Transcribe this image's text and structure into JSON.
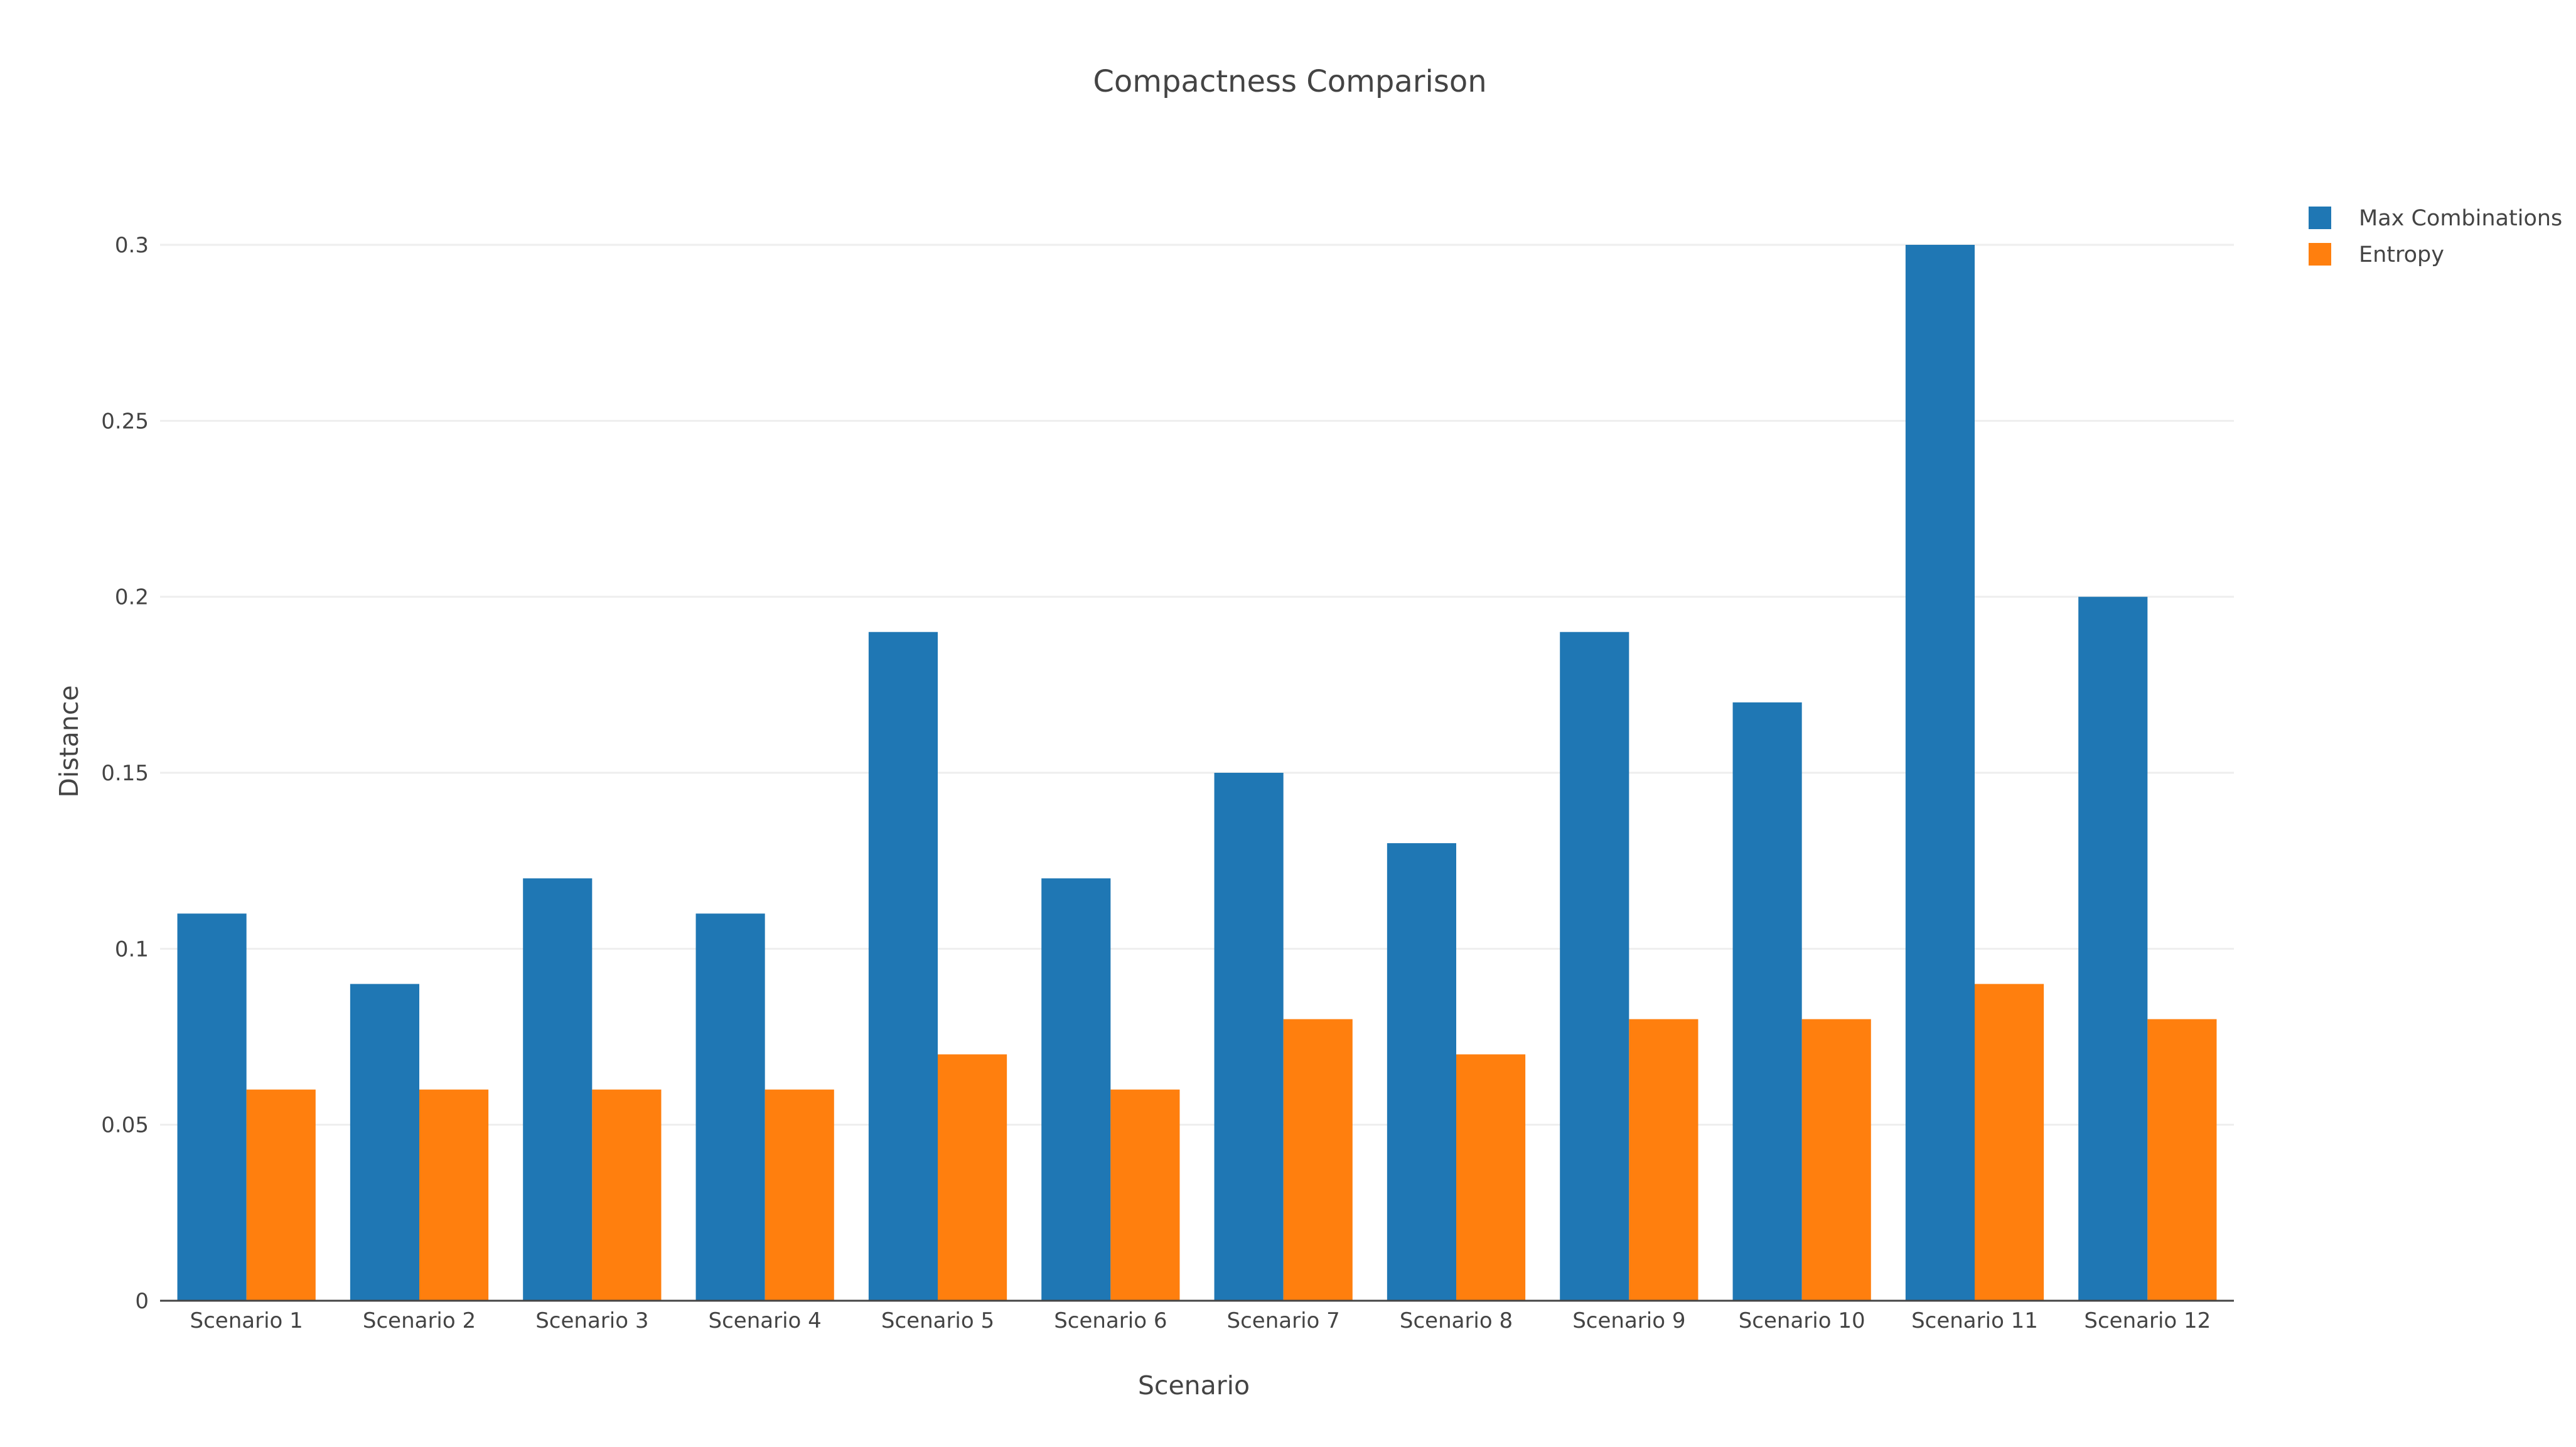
{
  "chart_data": {
    "type": "bar",
    "title": "Compactness Comparison",
    "xlabel": "Scenario",
    "ylabel": "Distance",
    "categories": [
      "Scenario 1",
      "Scenario 2",
      "Scenario 3",
      "Scenario 4",
      "Scenario 5",
      "Scenario 6",
      "Scenario 7",
      "Scenario 8",
      "Scenario 9",
      "Scenario 10",
      "Scenario 11",
      "Scenario 12"
    ],
    "series": [
      {
        "name": "Max Combinations",
        "color": "#1f77b4",
        "values": [
          0.11,
          0.09,
          0.12,
          0.11,
          0.19,
          0.12,
          0.15,
          0.13,
          0.19,
          0.17,
          0.3,
          0.2
        ]
      },
      {
        "name": "Entropy",
        "color": "#ff7f0e",
        "values": [
          0.06,
          0.06,
          0.06,
          0.06,
          0.07,
          0.06,
          0.08,
          0.07,
          0.08,
          0.08,
          0.09,
          0.08
        ]
      }
    ],
    "ylim": [
      0,
      0.3
    ],
    "yticks": [
      0,
      0.05,
      0.1,
      0.15,
      0.2,
      0.25,
      0.3
    ],
    "ytick_labels": [
      "0",
      "0.05",
      "0.1",
      "0.15",
      "0.2",
      "0.25",
      "0.3"
    ],
    "grid": true,
    "legend_position": "top-right"
  }
}
